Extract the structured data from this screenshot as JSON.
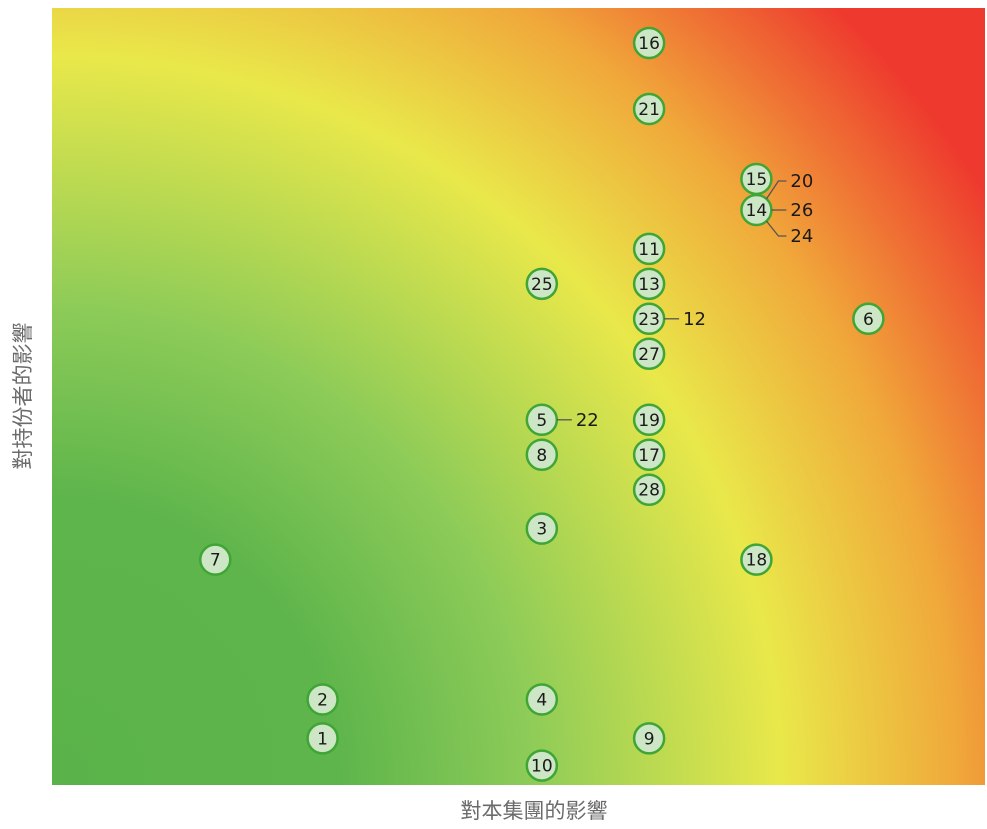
{
  "chart_data": {
    "type": "scatter",
    "title": "",
    "xlabel": "對本集團的影響",
    "ylabel": "對持份者的影響",
    "axes_ticks": "none",
    "background": "heatmap gradient: green (low impact, bottom-left) to yellow to red (high impact, top-right)",
    "gradient_colors": [
      "#5ab34a",
      "#8ccb58",
      "#e9e84a",
      "#f0a83a",
      "#ee3a2e"
    ],
    "marker_fill": "#cde6c6",
    "marker_stroke": "#3fa535",
    "connector_color": "#555555",
    "xlim": [
      0,
      10
    ],
    "ylim": [
      0,
      10
    ],
    "points": [
      {
        "id": "1",
        "x": 2.9,
        "y": 0.6
      },
      {
        "id": "2",
        "x": 2.9,
        "y": 1.1
      },
      {
        "id": "3",
        "x": 5.25,
        "y": 3.3
      },
      {
        "id": "4",
        "x": 5.25,
        "y": 1.1
      },
      {
        "id": "5",
        "x": 5.25,
        "y": 4.7
      },
      {
        "id": "6",
        "x": 8.75,
        "y": 6.0
      },
      {
        "id": "7",
        "x": 1.75,
        "y": 2.9
      },
      {
        "id": "8",
        "x": 5.25,
        "y": 4.25
      },
      {
        "id": "9",
        "x": 6.4,
        "y": 0.6
      },
      {
        "id": "10",
        "x": 5.25,
        "y": 0.25
      },
      {
        "id": "11",
        "x": 6.4,
        "y": 6.9
      },
      {
        "id": "13",
        "x": 6.4,
        "y": 6.45
      },
      {
        "id": "14",
        "x": 7.55,
        "y": 7.4
      },
      {
        "id": "15",
        "x": 7.55,
        "y": 7.8
      },
      {
        "id": "16",
        "x": 6.4,
        "y": 9.55
      },
      {
        "id": "17",
        "x": 6.4,
        "y": 4.25
      },
      {
        "id": "18",
        "x": 7.55,
        "y": 2.9
      },
      {
        "id": "19",
        "x": 6.4,
        "y": 4.7
      },
      {
        "id": "21",
        "x": 6.4,
        "y": 8.7
      },
      {
        "id": "23",
        "x": 6.4,
        "y": 6.0
      },
      {
        "id": "25",
        "x": 5.25,
        "y": 6.45
      },
      {
        "id": "27",
        "x": 6.4,
        "y": 5.55
      },
      {
        "id": "28",
        "x": 6.4,
        "y": 3.8
      }
    ],
    "callouts": [
      {
        "id": "12",
        "anchor": "23"
      },
      {
        "id": "22",
        "anchor": "5"
      },
      {
        "id": "20",
        "anchor": "14",
        "pos": "up"
      },
      {
        "id": "26",
        "anchor": "14",
        "pos": "mid"
      },
      {
        "id": "24",
        "anchor": "14",
        "pos": "down"
      }
    ]
  }
}
